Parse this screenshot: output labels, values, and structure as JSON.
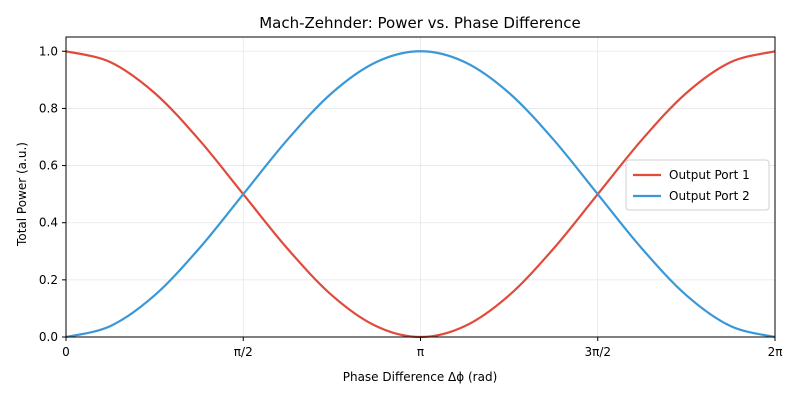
{
  "chart_data": {
    "type": "line",
    "title": "Mach-Zehnder: Power vs. Phase Difference",
    "xlabel": "Phase Difference Δϕ (rad)",
    "ylabel": "Total Power (a.u.)",
    "xlim": [
      0,
      6.2832
    ],
    "ylim": [
      0,
      1.05
    ],
    "grid": true,
    "legend_position": "center-right",
    "x_ticks": [
      {
        "value": 0,
        "label": "0"
      },
      {
        "value": 1.5708,
        "label": "π/2"
      },
      {
        "value": 3.1416,
        "label": "π"
      },
      {
        "value": 4.7124,
        "label": "3π/2"
      },
      {
        "value": 6.2832,
        "label": "2π"
      }
    ],
    "y_ticks": [
      {
        "value": 0.0,
        "label": "0.0"
      },
      {
        "value": 0.2,
        "label": "0.2"
      },
      {
        "value": 0.4,
        "label": "0.4"
      },
      {
        "value": 0.6,
        "label": "0.6"
      },
      {
        "value": 0.8,
        "label": "0.8"
      },
      {
        "value": 1.0,
        "label": "1.0"
      }
    ],
    "x": [
      0,
      0.3927,
      0.7854,
      1.1781,
      1.5708,
      1.9635,
      2.3562,
      2.7489,
      3.1416,
      3.5343,
      3.927,
      4.3197,
      4.7124,
      5.1051,
      5.4978,
      5.8905,
      6.2832
    ],
    "series": [
      {
        "name": "Output Port 1",
        "color": "#e04b3c",
        "values": [
          1.0,
          0.962,
          0.854,
          0.691,
          0.5,
          0.309,
          0.146,
          0.038,
          0.0,
          0.038,
          0.146,
          0.309,
          0.5,
          0.691,
          0.854,
          0.962,
          1.0
        ]
      },
      {
        "name": "Output Port 2",
        "color": "#3a98d8",
        "values": [
          0.0,
          0.038,
          0.146,
          0.309,
          0.5,
          0.691,
          0.854,
          0.962,
          1.0,
          0.962,
          0.854,
          0.691,
          0.5,
          0.309,
          0.146,
          0.038,
          0.0
        ]
      }
    ]
  }
}
